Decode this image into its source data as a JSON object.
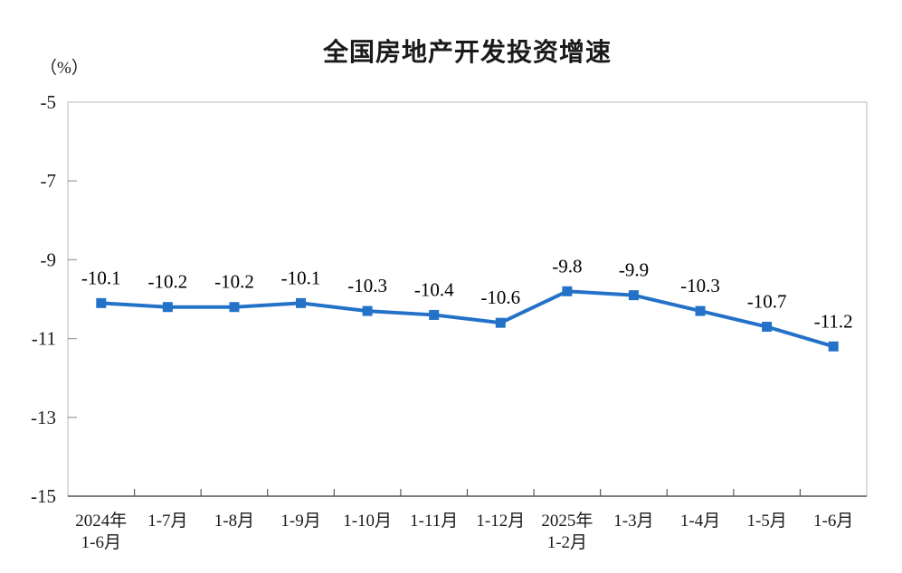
{
  "chart_data": {
    "type": "line",
    "title": "全国房地产开发投资增速",
    "unit_label": "（%）",
    "categories": [
      "2024年\n1-6月",
      "1-7月",
      "1-8月",
      "1-9月",
      "1-10月",
      "1-11月",
      "1-12月",
      "2025年\n1-2月",
      "1-3月",
      "1-4月",
      "1-5月",
      "1-6月"
    ],
    "series": [
      {
        "name": "全国房地产开发投资增速",
        "values": [
          -10.1,
          -10.2,
          -10.2,
          -10.1,
          -10.3,
          -10.4,
          -10.6,
          -9.8,
          -9.9,
          -10.3,
          -10.7,
          -11.2
        ]
      }
    ],
    "data_labels": [
      "-10.1",
      "-10.2",
      "-10.2",
      "-10.1",
      "-10.3",
      "-10.4",
      "-10.6",
      "-9.8",
      "-9.9",
      "-10.3",
      "-10.7",
      "-11.2"
    ],
    "y_ticks": [
      "-5",
      "-7",
      "-9",
      "-11",
      "-13",
      "-15"
    ],
    "ylim": [
      -15,
      -5
    ],
    "xlabel": "",
    "ylabel": "（%）",
    "grid": false,
    "legend": "none",
    "colors": {
      "line": "#2472C8",
      "marker": "#2472C8",
      "plot_border": "#C9C9C9",
      "bottom_axis": "#595959",
      "y_tick": "#A0A0A0",
      "axis_text": "#1A1A1A",
      "data_label_text": "#000000"
    }
  }
}
